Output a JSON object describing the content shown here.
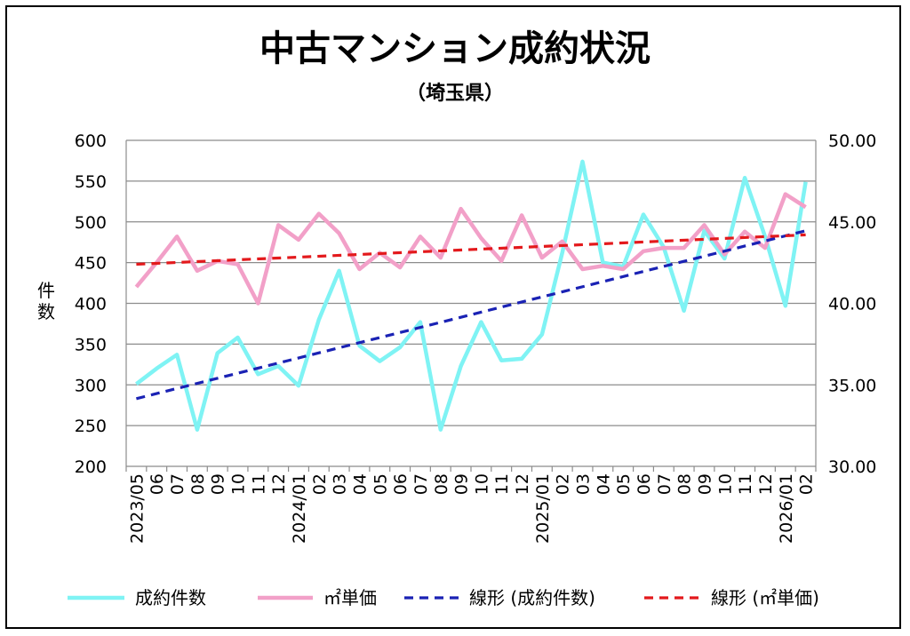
{
  "chart_data": {
    "type": "line",
    "title": "中古マンション成約状況",
    "subtitle": "（埼玉県）",
    "ylabel_left": "件数",
    "ylim_left": [
      200,
      600
    ],
    "ylim_right": [
      30.0,
      50.0
    ],
    "left_ticks": [
      "200",
      "250",
      "300",
      "350",
      "400",
      "450",
      "500",
      "550",
      "600"
    ],
    "right_ticks": [
      "30.00",
      "35.00",
      "40.00",
      "45.00",
      "50.00"
    ],
    "x_labels": [
      "2023/05",
      "06",
      "07",
      "08",
      "09",
      "10",
      "11",
      "12",
      "2024/01",
      "02",
      "03",
      "04",
      "05",
      "06",
      "07",
      "08",
      "09",
      "10",
      "11",
      "12",
      "2025/01",
      "02",
      "03",
      "04",
      "05",
      "06",
      "07",
      "08",
      "09",
      "10",
      "11",
      "12",
      "2026/01",
      "02"
    ],
    "grid": true,
    "legend_position": "bottom",
    "series": [
      {
        "name": "成約件数",
        "axis": "left",
        "color": "#7ff3f4",
        "style": "solid",
        "values": [
          301,
          320,
          337,
          245,
          339,
          358,
          313,
          323,
          299,
          380,
          440,
          348,
          329,
          346,
          377,
          245,
          323,
          377,
          330,
          332,
          362,
          462,
          574,
          450,
          445,
          509,
          469,
          391,
          489,
          455,
          554,
          482,
          397,
          549
        ]
      },
      {
        "name": "㎡単価",
        "axis": "right",
        "color": "#f2a0c8",
        "style": "solid",
        "values": [
          41.0,
          42.5,
          44.1,
          42.0,
          42.6,
          42.4,
          40.0,
          44.8,
          43.9,
          45.5,
          44.3,
          42.1,
          43.1,
          42.2,
          44.1,
          42.8,
          45.8,
          44.0,
          42.6,
          45.4,
          42.8,
          43.8,
          42.1,
          42.3,
          42.1,
          43.2,
          43.4,
          43.4,
          44.8,
          43.0,
          44.4,
          43.4,
          46.7,
          45.9
        ]
      },
      {
        "name": "線形 (成約件数)",
        "axis": "left",
        "color": "#1a22b4",
        "style": "dashed",
        "values": [
          283,
          489
        ]
      },
      {
        "name": "線形 (㎡単価)",
        "axis": "right",
        "color": "#e3191c",
        "style": "dashed",
        "values": [
          42.4,
          44.2
        ]
      }
    ]
  }
}
